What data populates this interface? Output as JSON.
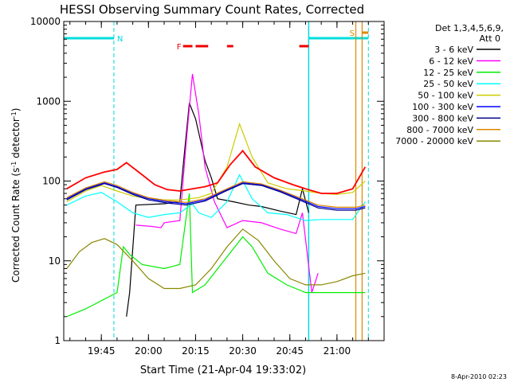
{
  "chart_data": {
    "type": "line",
    "title": "HESSI Observing Summary Count Rates, Corrected",
    "xlabel": "Start Time (21-Apr-04 19:33:02)",
    "ylabel_main": "Corrected Count Rate (s",
    "ylabel_sup1": "-1",
    "ylabel_mid": " detector",
    "ylabel_sup2": "-1",
    "ylabel_end": ")",
    "y_scale": "log",
    "ylim": [
      1,
      10000
    ],
    "xlim": [
      "19:33:02",
      "21:15:00"
    ],
    "x_ticks": [
      "19:45",
      "20:00",
      "20:15",
      "20:30",
      "20:45",
      "21:00"
    ],
    "y_ticks": [
      "1",
      "10",
      "100",
      "1000",
      "10000"
    ],
    "legend_header": [
      "Det 1,3,4,5,6,9,",
      "Att 0"
    ],
    "footer_date": "8-Apr-2010 02:23",
    "flags": [
      {
        "label": "N",
        "color": "#00dddd"
      },
      {
        "label": "F",
        "color": "#ee0000"
      },
      {
        "label": "S",
        "color": "#dd8800"
      }
    ],
    "series": [
      {
        "name": "3 - 6 keV",
        "color": "#000000",
        "points": [
          [
            "19:53",
            2
          ],
          [
            "19:54",
            4
          ],
          [
            "19:56",
            50
          ],
          [
            "20:05",
            52
          ],
          [
            "20:10",
            55
          ],
          [
            "20:11",
            150
          ],
          [
            "20:13",
            950
          ],
          [
            "20:15",
            600
          ],
          [
            "20:18",
            180
          ],
          [
            "20:20",
            110
          ],
          [
            "20:22",
            60
          ],
          [
            "20:27",
            55
          ],
          [
            "20:32",
            50
          ],
          [
            "20:36",
            48
          ],
          [
            "20:42",
            42
          ],
          [
            "20:47",
            38
          ],
          [
            "20:49",
            80
          ],
          [
            "20:51",
            40
          ]
        ]
      },
      {
        "name": "6 - 12 keV",
        "color": "#ff00ff",
        "points": [
          [
            "19:56",
            28
          ],
          [
            "20:01",
            27
          ],
          [
            "20:04",
            26
          ],
          [
            "20:05",
            30
          ],
          [
            "20:10",
            32
          ],
          [
            "20:12",
            300
          ],
          [
            "20:14",
            2200
          ],
          [
            "20:16",
            700
          ],
          [
            "20:18",
            150
          ],
          [
            "20:21",
            55
          ],
          [
            "20:25",
            26
          ],
          [
            "20:30",
            32
          ],
          [
            "20:36",
            30
          ],
          [
            "20:42",
            25
          ],
          [
            "20:47",
            22
          ],
          [
            "20:49",
            40
          ],
          [
            "20:52",
            4
          ],
          [
            "20:54",
            7
          ]
        ]
      },
      {
        "name": "12 - 25 keV",
        "color": "#00ee00",
        "points": [
          [
            "19:34",
            2
          ],
          [
            "19:40",
            2.5
          ],
          [
            "19:50",
            4
          ],
          [
            "19:52",
            15
          ],
          [
            "19:54",
            12
          ],
          [
            "19:58",
            9
          ],
          [
            "20:05",
            8
          ],
          [
            "20:10",
            9
          ],
          [
            "20:13",
            70
          ],
          [
            "20:14",
            4
          ],
          [
            "20:18",
            5
          ],
          [
            "20:24",
            10
          ],
          [
            "20:30",
            20
          ],
          [
            "20:33",
            15
          ],
          [
            "20:38",
            7
          ],
          [
            "20:44",
            5
          ],
          [
            "20:50",
            4
          ],
          [
            "20:53",
            4
          ],
          [
            "20:58",
            4
          ],
          [
            "21:04",
            4
          ],
          [
            "21:09",
            4
          ]
        ]
      },
      {
        "name": "25 - 50 keV",
        "color": "#00ffff",
        "points": [
          [
            "19:34",
            50
          ],
          [
            "19:40",
            65
          ],
          [
            "19:45",
            72
          ],
          [
            "19:50",
            55
          ],
          [
            "19:55",
            40
          ],
          [
            "20:00",
            35
          ],
          [
            "20:05",
            38
          ],
          [
            "20:10",
            40
          ],
          [
            "20:14",
            52
          ],
          [
            "20:16",
            40
          ],
          [
            "20:20",
            35
          ],
          [
            "20:25",
            55
          ],
          [
            "20:29",
            120
          ],
          [
            "20:33",
            60
          ],
          [
            "20:38",
            40
          ],
          [
            "20:44",
            38
          ],
          [
            "20:50",
            32
          ],
          [
            "20:55",
            33
          ],
          [
            "21:00",
            33
          ],
          [
            "21:05",
            33
          ],
          [
            "21:09",
            55
          ]
        ]
      },
      {
        "name": "50 - 100 keV",
        "color": "#cccc00",
        "points": [
          [
            "19:34",
            55
          ],
          [
            "19:40",
            75
          ],
          [
            "19:45",
            88
          ],
          [
            "19:50",
            75
          ],
          [
            "19:55",
            65
          ],
          [
            "20:00",
            60
          ],
          [
            "20:05",
            58
          ],
          [
            "20:10",
            58
          ],
          [
            "20:16",
            62
          ],
          [
            "20:20",
            70
          ],
          [
            "20:25",
            150
          ],
          [
            "20:29",
            520
          ],
          [
            "20:33",
            200
          ],
          [
            "20:38",
            95
          ],
          [
            "20:44",
            80
          ],
          [
            "20:50",
            75
          ],
          [
            "20:55",
            70
          ],
          [
            "21:00",
            68
          ],
          [
            "21:05",
            72
          ],
          [
            "21:09",
            100
          ]
        ]
      },
      {
        "name": "100 - 300 keV",
        "color": "#0000ff",
        "points": [
          [
            "19:34",
            60
          ],
          [
            "19:40",
            80
          ],
          [
            "19:46",
            95
          ],
          [
            "19:50",
            85
          ],
          [
            "19:55",
            70
          ],
          [
            "20:00",
            60
          ],
          [
            "20:06",
            55
          ],
          [
            "20:12",
            52
          ],
          [
            "20:18",
            58
          ],
          [
            "20:24",
            75
          ],
          [
            "20:30",
            95
          ],
          [
            "20:36",
            90
          ],
          [
            "20:42",
            75
          ],
          [
            "20:48",
            60
          ],
          [
            "20:54",
            48
          ],
          [
            "21:00",
            45
          ],
          [
            "21:06",
            45
          ],
          [
            "21:09",
            48
          ]
        ]
      },
      {
        "name": "300 - 800 keV",
        "color": "#000088",
        "points": [
          [
            "19:34",
            58
          ],
          [
            "19:40",
            78
          ],
          [
            "19:46",
            93
          ],
          [
            "19:50",
            83
          ],
          [
            "19:55",
            68
          ],
          [
            "20:00",
            58
          ],
          [
            "20:06",
            53
          ],
          [
            "20:12",
            50
          ],
          [
            "20:18",
            56
          ],
          [
            "20:24",
            73
          ],
          [
            "20:30",
            93
          ],
          [
            "20:36",
            88
          ],
          [
            "20:42",
            73
          ],
          [
            "20:48",
            58
          ],
          [
            "20:54",
            46
          ],
          [
            "21:00",
            43
          ],
          [
            "21:06",
            43
          ],
          [
            "21:09",
            46
          ]
        ]
      },
      {
        "name": "800 - 7000 keV",
        "color": "#dd8800",
        "points": [
          [
            "19:34",
            62
          ],
          [
            "19:40",
            82
          ],
          [
            "19:46",
            98
          ],
          [
            "19:50",
            88
          ],
          [
            "19:55",
            72
          ],
          [
            "20:00",
            62
          ],
          [
            "20:06",
            57
          ],
          [
            "20:12",
            54
          ],
          [
            "20:18",
            60
          ],
          [
            "20:24",
            77
          ],
          [
            "20:30",
            98
          ],
          [
            "20:36",
            92
          ],
          [
            "20:42",
            77
          ],
          [
            "20:48",
            62
          ],
          [
            "20:54",
            50
          ],
          [
            "21:00",
            47
          ],
          [
            "21:06",
            47
          ],
          [
            "21:09",
            50
          ]
        ]
      },
      {
        "name": "7000 - 20000 keV",
        "color": "#888800",
        "points": [
          [
            "19:34",
            8
          ],
          [
            "19:38",
            13
          ],
          [
            "19:42",
            17
          ],
          [
            "19:46",
            19
          ],
          [
            "19:50",
            16
          ],
          [
            "19:55",
            10
          ],
          [
            "20:00",
            6
          ],
          [
            "20:05",
            4.5
          ],
          [
            "20:10",
            4.5
          ],
          [
            "20:15",
            5
          ],
          [
            "20:20",
            8
          ],
          [
            "20:25",
            15
          ],
          [
            "20:30",
            25
          ],
          [
            "20:35",
            18
          ],
          [
            "20:40",
            10
          ],
          [
            "20:45",
            6
          ],
          [
            "20:50",
            5
          ],
          [
            "20:55",
            5
          ],
          [
            "21:00",
            5.5
          ],
          [
            "21:05",
            6.5
          ],
          [
            "21:09",
            7
          ]
        ]
      }
    ],
    "envelope": {
      "color": "#ff0000",
      "points": [
        [
          "19:34",
          80
        ],
        [
          "19:40",
          110
        ],
        [
          "19:46",
          130
        ],
        [
          "19:50",
          140
        ],
        [
          "19:53",
          170
        ],
        [
          "19:58",
          120
        ],
        [
          "20:02",
          90
        ],
        [
          "20:06",
          78
        ],
        [
          "20:10",
          75
        ],
        [
          "20:14",
          80
        ],
        [
          "20:18",
          85
        ],
        [
          "20:22",
          95
        ],
        [
          "20:26",
          160
        ],
        [
          "20:30",
          240
        ],
        [
          "20:34",
          150
        ],
        [
          "20:40",
          110
        ],
        [
          "20:46",
          90
        ],
        [
          "20:50",
          80
        ],
        [
          "20:55",
          70
        ],
        [
          "21:00",
          70
        ],
        [
          "21:05",
          80
        ],
        [
          "21:09",
          150
        ]
      ]
    }
  }
}
